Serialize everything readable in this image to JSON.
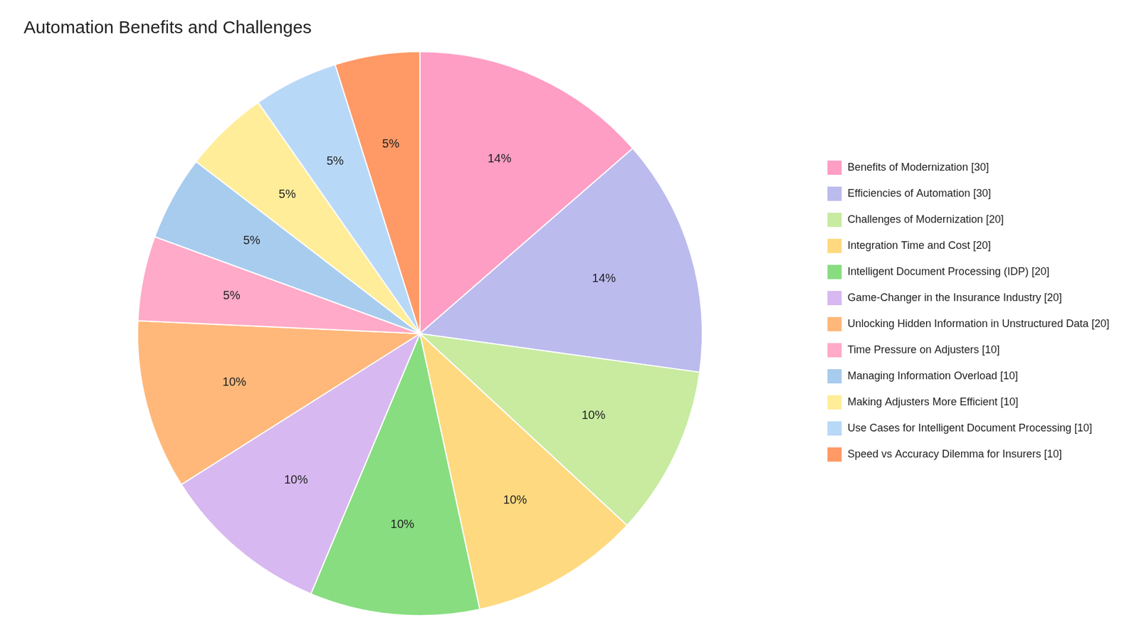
{
  "chart_data": {
    "type": "pie",
    "title": "Automation Benefits and Challenges",
    "categories": [
      "Benefits of Modernization [30]",
      "Efficiencies of Automation [30]",
      "Challenges of Modernization [20]",
      "Integration Time and Cost [20]",
      "Intelligent Document Processing (IDP) [20]",
      "Game-Changer in the Insurance Industry [20]",
      "Unlocking Hidden Information in Unstructured Data [20]",
      "Time Pressure on Adjusters [10]",
      "Managing Information Overload [10]",
      "Making Adjusters More Efficient [10]",
      "Use Cases for Intelligent Document Processing [10]",
      "Speed vs Accuracy Dilemma for Insurers [10]"
    ],
    "values": [
      14,
      14,
      10,
      10,
      10,
      10,
      10,
      5,
      5,
      5,
      5,
      5
    ],
    "value_labels": [
      "14%",
      "14%",
      "10%",
      "10%",
      "10%",
      "10%",
      "10%",
      "5%",
      "5%",
      "5%",
      "5%",
      "5%"
    ],
    "data_labels": true,
    "colors": [
      "#FF9EC4",
      "#BBBBEE",
      "#C8EBA0",
      "#FFD980",
      "#88DD80",
      "#D8B8F0",
      "#FFB87A",
      "#FFAAC8",
      "#A8CCEE",
      "#FFED99",
      "#B8D8F8",
      "#FF9966"
    ],
    "legend": "right"
  }
}
